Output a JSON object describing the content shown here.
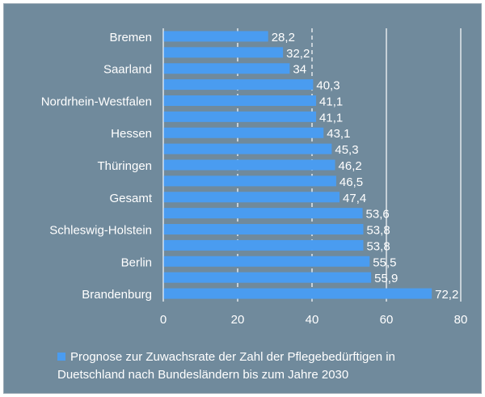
{
  "colors": {
    "background": "#708a9c",
    "bar": "#4a9cf0",
    "text": "#ffffff",
    "grid": "#ffffff"
  },
  "chart_data": {
    "type": "bar",
    "orientation": "horizontal",
    "categories": [
      "Bremen",
      "",
      "Saarland",
      "",
      "Nordrhein-Westfalen",
      "",
      "Hessen",
      "",
      "Thüringen",
      "",
      "Gesamt",
      "",
      "Schleswig-Holstein",
      "",
      "Berlin",
      "",
      "Brandenburg"
    ],
    "values": [
      28.2,
      32.2,
      34,
      40.3,
      41.1,
      41.1,
      43.1,
      45.3,
      46.2,
      46.5,
      47.4,
      53.6,
      53.8,
      53.8,
      55.5,
      55.9,
      72.2
    ],
    "value_labels": [
      "28,2",
      "32,2",
      "34",
      "40,3",
      "41,1",
      "41,1",
      "43,1",
      "45,3",
      "46,2",
      "46,5",
      "47,4",
      "53,6",
      "53,8",
      "53,8",
      "55,5",
      "55,9",
      "72,2"
    ],
    "xlim": [
      0,
      80
    ],
    "xticks": [
      "0",
      "20",
      "40",
      "60",
      "80"
    ],
    "xlabel": "",
    "ylabel": "",
    "grid": "vertical",
    "legend_position": "bottom",
    "series": [
      {
        "name": "Prognose zur Zuwachsrate der Zahl der Pflegebedürftigen in Duetschland nach Bundesländern bis zum Jahre 2030"
      }
    ]
  },
  "legend": {
    "line1": "Prognose zur Zuwachsrate der Zahl der Pflegebedürftigen in",
    "line2": "Duetschland nach Bundesländern bis zum Jahre 2030"
  }
}
